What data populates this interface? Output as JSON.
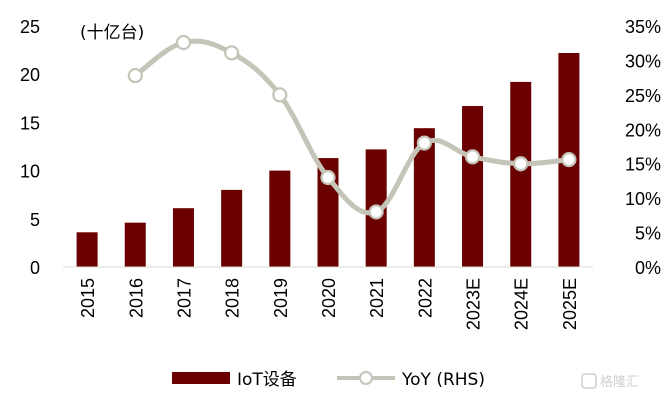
{
  "chart_data": {
    "type": "bar+line",
    "unit_label": "(十亿台)",
    "categories": [
      "2015",
      "2016",
      "2017",
      "2018",
      "2019",
      "2020",
      "2021",
      "2022",
      "2023E",
      "2024E",
      "2025E"
    ],
    "series": [
      {
        "name": "IoT设备",
        "type": "bar",
        "axis": "left",
        "color": "#6b0000",
        "values": [
          3.6,
          4.6,
          6.1,
          8.0,
          10.0,
          11.3,
          12.2,
          14.4,
          16.7,
          19.2,
          22.2
        ]
      },
      {
        "name": "YoY (RHS)",
        "type": "line",
        "axis": "right",
        "color": "#c4c4b8",
        "values": [
          null,
          27.8,
          32.6,
          31.1,
          25.0,
          13.0,
          8.0,
          18.0,
          16.0,
          15.0,
          15.6
        ]
      }
    ],
    "y_left": {
      "min": 0,
      "max": 25,
      "ticks": [
        "0",
        "5",
        "10",
        "15",
        "20",
        "25"
      ]
    },
    "y_right": {
      "min": 0,
      "max": 35,
      "ticks": [
        "0%",
        "5%",
        "10%",
        "15%",
        "20%",
        "25%",
        "30%",
        "35%"
      ]
    },
    "legend": {
      "position": "bottom",
      "items": [
        {
          "label": "IoT设备"
        },
        {
          "label": "YoY (RHS)"
        }
      ]
    },
    "watermark": "格隆汇"
  }
}
